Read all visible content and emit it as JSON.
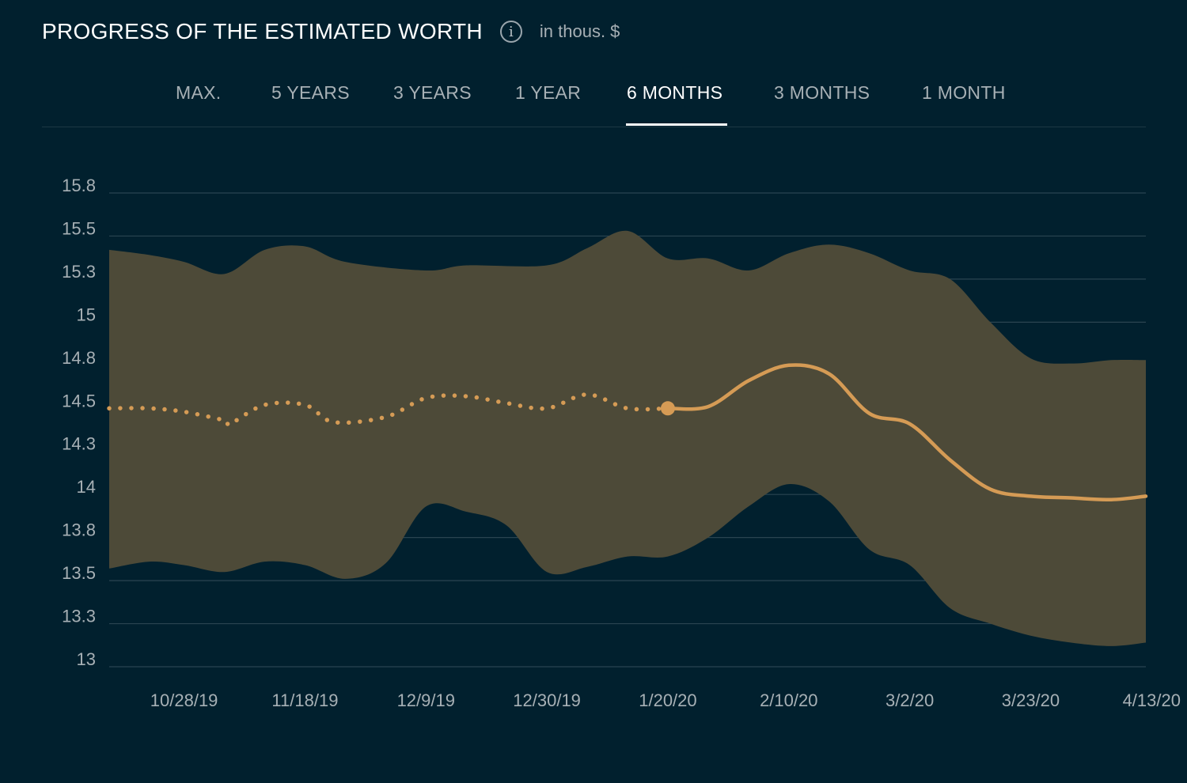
{
  "header": {
    "title": "PROGRESS OF THE ESTIMATED WORTH",
    "info_icon_glyph": "i",
    "unit": "in thous. $"
  },
  "tabs": [
    {
      "label": "MAX.",
      "active": false
    },
    {
      "label": "5 YEARS",
      "active": false
    },
    {
      "label": "3 YEARS",
      "active": false
    },
    {
      "label": "1 YEAR",
      "active": false
    },
    {
      "label": "6 MONTHS",
      "active": true
    },
    {
      "label": "3 MONTHS",
      "active": false
    },
    {
      "label": "1 MONTH",
      "active": false
    }
  ],
  "colors": {
    "background": "#01202e",
    "band": "#4d4a38",
    "line": "#d59b55",
    "grid": "#2a4451"
  },
  "chart_data": {
    "type": "area",
    "x_tick_labels": [
      "10/28/19",
      "11/18/19",
      "12/9/19",
      "12/30/19",
      "1/20/20",
      "2/10/20",
      "3/2/20",
      "3/23/20",
      "4/13/20"
    ],
    "y_tick_labels": [
      "15.8",
      "15.5",
      "15.3",
      "15",
      "14.8",
      "14.5",
      "14.3",
      "14",
      "13.8",
      "13.5",
      "13.3",
      "13"
    ],
    "ylim": [
      13,
      15.75
    ],
    "x_range_days": [
      -13,
      167
    ],
    "series": [
      {
        "style": "dotted",
        "points": [
          [
            -13,
            14.5
          ],
          [
            -6,
            14.5
          ],
          [
            0,
            14.48
          ],
          [
            7,
            14.43
          ],
          [
            8,
            14.41
          ],
          [
            14,
            14.52
          ],
          [
            21,
            14.52
          ],
          [
            26,
            14.42
          ],
          [
            35,
            14.45
          ],
          [
            42,
            14.56
          ],
          [
            49,
            14.57
          ],
          [
            56,
            14.53
          ],
          [
            63,
            14.5
          ],
          [
            70,
            14.58
          ],
          [
            77,
            14.5
          ],
          [
            84,
            14.5
          ]
        ]
      },
      {
        "style": "solid",
        "points": [
          [
            84,
            14.5
          ],
          [
            91,
            14.51
          ],
          [
            98,
            14.66
          ],
          [
            105,
            14.75
          ],
          [
            112,
            14.7
          ],
          [
            119,
            14.47
          ],
          [
            126,
            14.41
          ],
          [
            133,
            14.2
          ],
          [
            140,
            14.03
          ],
          [
            147,
            13.99
          ],
          [
            154,
            13.98
          ],
          [
            161,
            13.97
          ],
          [
            167,
            13.99
          ]
        ]
      }
    ],
    "range_band": {
      "upper": [
        [
          -13,
          15.42
        ],
        [
          -6,
          15.39
        ],
        [
          0,
          15.35
        ],
        [
          7,
          15.28
        ],
        [
          14,
          15.42
        ],
        [
          21,
          15.44
        ],
        [
          28,
          15.35
        ],
        [
          42,
          15.3
        ],
        [
          49,
          15.33
        ],
        [
          63,
          15.33
        ],
        [
          70,
          15.43
        ],
        [
          77,
          15.53
        ],
        [
          84,
          15.37
        ],
        [
          91,
          15.37
        ],
        [
          98,
          15.3
        ],
        [
          105,
          15.4
        ],
        [
          112,
          15.45
        ],
        [
          119,
          15.4
        ],
        [
          126,
          15.3
        ],
        [
          133,
          15.25
        ],
        [
          140,
          15.0
        ],
        [
          147,
          14.79
        ],
        [
          154,
          14.76
        ],
        [
          161,
          14.78
        ],
        [
          167,
          14.78
        ]
      ],
      "lower": [
        [
          -13,
          13.57
        ],
        [
          -6,
          13.61
        ],
        [
          0,
          13.59
        ],
        [
          7,
          13.55
        ],
        [
          14,
          13.61
        ],
        [
          21,
          13.59
        ],
        [
          28,
          13.51
        ],
        [
          35,
          13.6
        ],
        [
          42,
          13.93
        ],
        [
          49,
          13.9
        ],
        [
          56,
          13.82
        ],
        [
          63,
          13.55
        ],
        [
          70,
          13.58
        ],
        [
          77,
          13.64
        ],
        [
          84,
          13.64
        ],
        [
          91,
          13.75
        ],
        [
          98,
          13.93
        ],
        [
          105,
          14.06
        ],
        [
          112,
          13.96
        ],
        [
          119,
          13.68
        ],
        [
          126,
          13.59
        ],
        [
          133,
          13.34
        ],
        [
          140,
          13.25
        ],
        [
          147,
          13.18
        ],
        [
          154,
          13.14
        ],
        [
          161,
          13.12
        ],
        [
          167,
          13.14
        ]
      ]
    },
    "marker": {
      "x": 84,
      "y": 14.5
    }
  }
}
